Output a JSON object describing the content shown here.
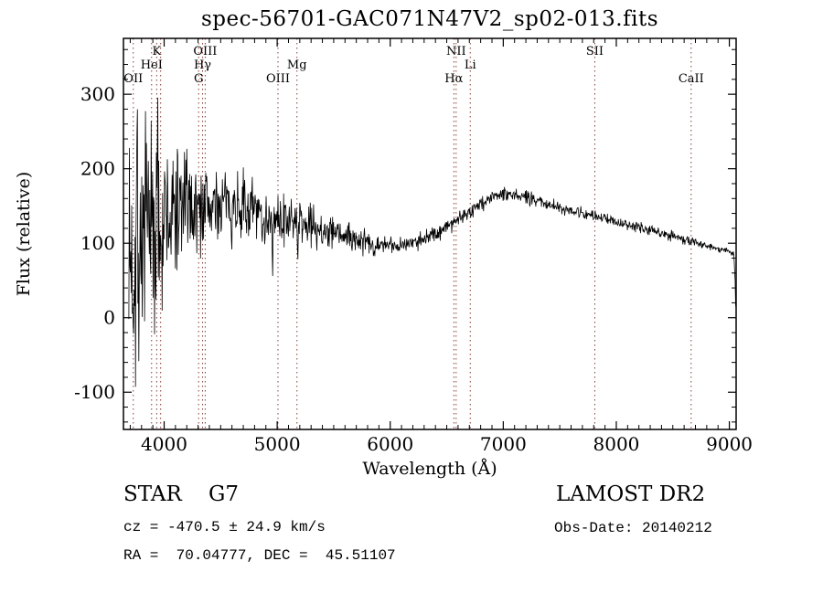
{
  "title": "spec-56701-GAC071N47V2_sp02-013.fits",
  "annotations": {
    "class_label": "STAR    G7",
    "survey": "LAMOST DR2",
    "cz": "cz = -470.5 ± 24.9 km/s",
    "obs_date": "Obs-Date: 20140212",
    "coords": "RA =  70.04777, DEC =  45.51107"
  },
  "chart_data": {
    "type": "line",
    "title": "spec-56701-GAC071N47V2_sp02-013.fits",
    "xlabel": "Wavelength (Å)",
    "ylabel": "Flux (relative)",
    "xlim": [
      3640,
      9060
    ],
    "ylim": [
      -150,
      375
    ],
    "xticks": [
      4000,
      5000,
      6000,
      7000,
      8000,
      9000
    ],
    "yticks": [
      -100,
      0,
      100,
      200,
      300
    ],
    "x_minor_step": 100,
    "y_minor_step": 20,
    "grid": false,
    "line_color": "#000000",
    "marker_color": "#8b3a3a",
    "noise_seed": 7,
    "spectral_lines": [
      {
        "label": "OII",
        "wavelength": 3727,
        "row": 3
      },
      {
        "label": "HeI",
        "wavelength": 3889,
        "row": 2
      },
      {
        "label": "K",
        "wavelength": 3934,
        "row": 1
      },
      {
        "label": "",
        "wavelength": 3969,
        "row": 0
      },
      {
        "label": "G",
        "wavelength": 4305,
        "row": 3
      },
      {
        "label": "Hγ",
        "wavelength": 4340,
        "row": 2
      },
      {
        "label": "OIII",
        "wavelength": 4363,
        "row": 1
      },
      {
        "label": "OIII",
        "wavelength": 5007,
        "row": 3
      },
      {
        "label": "Mg",
        "wavelength": 5175,
        "row": 2
      },
      {
        "label": "Hα",
        "wavelength": 6563,
        "row": 3
      },
      {
        "label": "NII",
        "wavelength": 6583,
        "row": 1
      },
      {
        "label": "Li",
        "wavelength": 6708,
        "row": 2
      },
      {
        "label": "SII",
        "wavelength": 7810,
        "row": 1
      },
      {
        "label": "CaII",
        "wavelength": 8662,
        "row": 3
      }
    ],
    "spectrum_envelope": [
      [
        3688,
        60,
        150
      ],
      [
        3740,
        90,
        155
      ],
      [
        3800,
        100,
        150
      ],
      [
        3860,
        105,
        140
      ],
      [
        3920,
        115,
        125
      ],
      [
        3990,
        125,
        105
      ],
      [
        4060,
        135,
        90
      ],
      [
        4140,
        148,
        72
      ],
      [
        4240,
        152,
        58
      ],
      [
        4340,
        150,
        52
      ],
      [
        4440,
        152,
        46
      ],
      [
        4540,
        153,
        42
      ],
      [
        4640,
        150,
        40
      ],
      [
        4740,
        146,
        37
      ],
      [
        4840,
        141,
        34
      ],
      [
        4940,
        132,
        31
      ],
      [
        5040,
        128,
        29
      ],
      [
        5140,
        131,
        27
      ],
      [
        5240,
        127,
        25
      ],
      [
        5340,
        122,
        23
      ],
      [
        5440,
        117,
        21
      ],
      [
        5540,
        112,
        19
      ],
      [
        5640,
        107,
        17
      ],
      [
        5740,
        103,
        15
      ],
      [
        5840,
        99,
        13
      ],
      [
        5940,
        97,
        11
      ],
      [
        6040,
        97,
        10
      ],
      [
        6140,
        99,
        10
      ],
      [
        6240,
        103,
        10
      ],
      [
        6340,
        109,
        10
      ],
      [
        6440,
        117,
        10
      ],
      [
        6540,
        127,
        10
      ],
      [
        6640,
        137,
        10
      ],
      [
        6740,
        147,
        10
      ],
      [
        6840,
        156,
        9
      ],
      [
        6940,
        164,
        9
      ],
      [
        7020,
        168,
        9
      ],
      [
        7120,
        165,
        8
      ],
      [
        7220,
        161,
        8
      ],
      [
        7320,
        156,
        8
      ],
      [
        7420,
        152,
        8
      ],
      [
        7520,
        148,
        7
      ],
      [
        7620,
        144,
        7
      ],
      [
        7720,
        140,
        7
      ],
      [
        7820,
        136,
        7
      ],
      [
        7920,
        132,
        6
      ],
      [
        8020,
        128,
        6
      ],
      [
        8120,
        124,
        6
      ],
      [
        8220,
        120,
        6
      ],
      [
        8320,
        117,
        6
      ],
      [
        8420,
        113,
        6
      ],
      [
        8520,
        109,
        6
      ],
      [
        8620,
        105,
        6
      ],
      [
        8720,
        100,
        5
      ],
      [
        8820,
        96,
        5
      ],
      [
        8920,
        92,
        5
      ],
      [
        9000,
        90,
        4
      ],
      [
        9040,
        86,
        4
      ],
      [
        9052,
        45,
        3
      ],
      [
        9058,
        -8,
        2
      ]
    ],
    "features": [
      [
        3762,
        215,
        5
      ],
      [
        3942,
        175,
        4
      ],
      [
        4960,
        -95,
        7
      ],
      [
        5180,
        -55,
        6
      ]
    ]
  }
}
